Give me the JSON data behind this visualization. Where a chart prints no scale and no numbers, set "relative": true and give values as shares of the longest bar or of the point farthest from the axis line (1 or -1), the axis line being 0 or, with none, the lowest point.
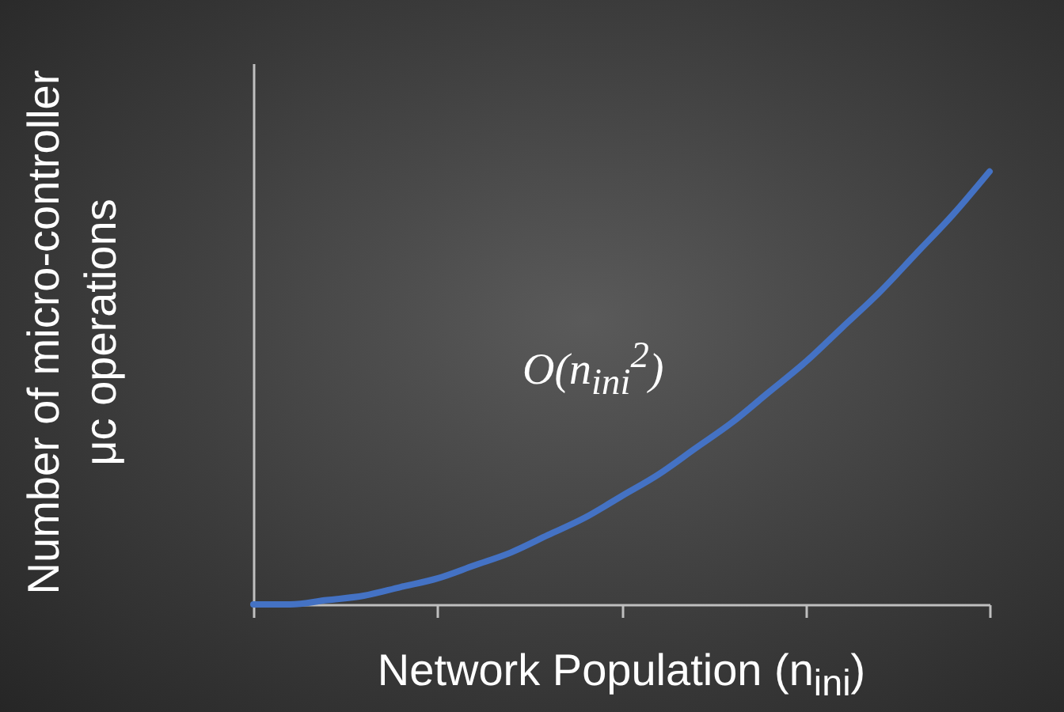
{
  "chart_data": {
    "type": "line",
    "relative": true,
    "grid": false,
    "marker": "none",
    "line_style": "solid",
    "xlabel": "Network Population (n$_{ini}$)",
    "ylabel": "Number of micro-controller μc operations",
    "annotations": [
      "O(n$_{ini}$$^{2}$)"
    ],
    "categories": [
      null,
      null,
      null,
      null,
      null,
      null,
      null,
      null,
      null,
      null,
      null,
      null,
      null,
      null,
      null,
      null,
      null,
      null,
      null,
      null,
      null
    ],
    "series": [
      {
        "color": "#4472c4",
        "values": [
          0,
          0,
          0.01,
          0.02,
          0.04,
          0.06,
          0.09,
          0.12,
          0.16,
          0.2,
          0.25,
          0.3,
          0.36,
          0.42,
          0.49,
          0.56,
          0.64,
          0.72,
          0.81,
          0.9,
          1
        ]
      }
    ]
  }
}
